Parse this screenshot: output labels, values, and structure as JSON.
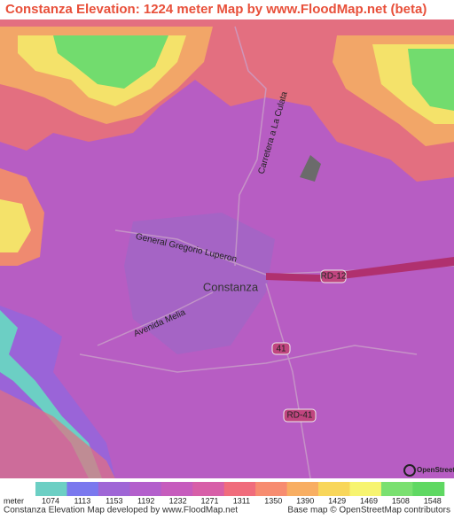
{
  "header": {
    "title": "Constanza Elevation: 1224 meter Map by www.FloodMap.net (beta)"
  },
  "map": {
    "labels": [
      "Carretera a La Culata",
      "General Gregorio Luperon",
      "Constanza",
      "RD-12",
      "Avenida Melia",
      "41",
      "RD-41"
    ],
    "attribution_logo": "OpenStreetMap"
  },
  "legend": {
    "unit": "meter",
    "ticks": [
      1074,
      1113,
      1153,
      1192,
      1232,
      1271,
      1311,
      1350,
      1390,
      1429,
      1469,
      1508,
      1548
    ],
    "colors": [
      "#6ccfc4",
      "#7a78ee",
      "#9f66d6",
      "#b35fcc",
      "#c65cbd",
      "#d75fa8",
      "#f06c7c",
      "#f78c70",
      "#f8ae62",
      "#f8d65a",
      "#f7f470",
      "#7ae070",
      "#5fd862"
    ]
  },
  "footer": {
    "left": "Constanza Elevation Map developed by www.FloodMap.net",
    "right": "Base map © OpenStreetMap contributors"
  }
}
